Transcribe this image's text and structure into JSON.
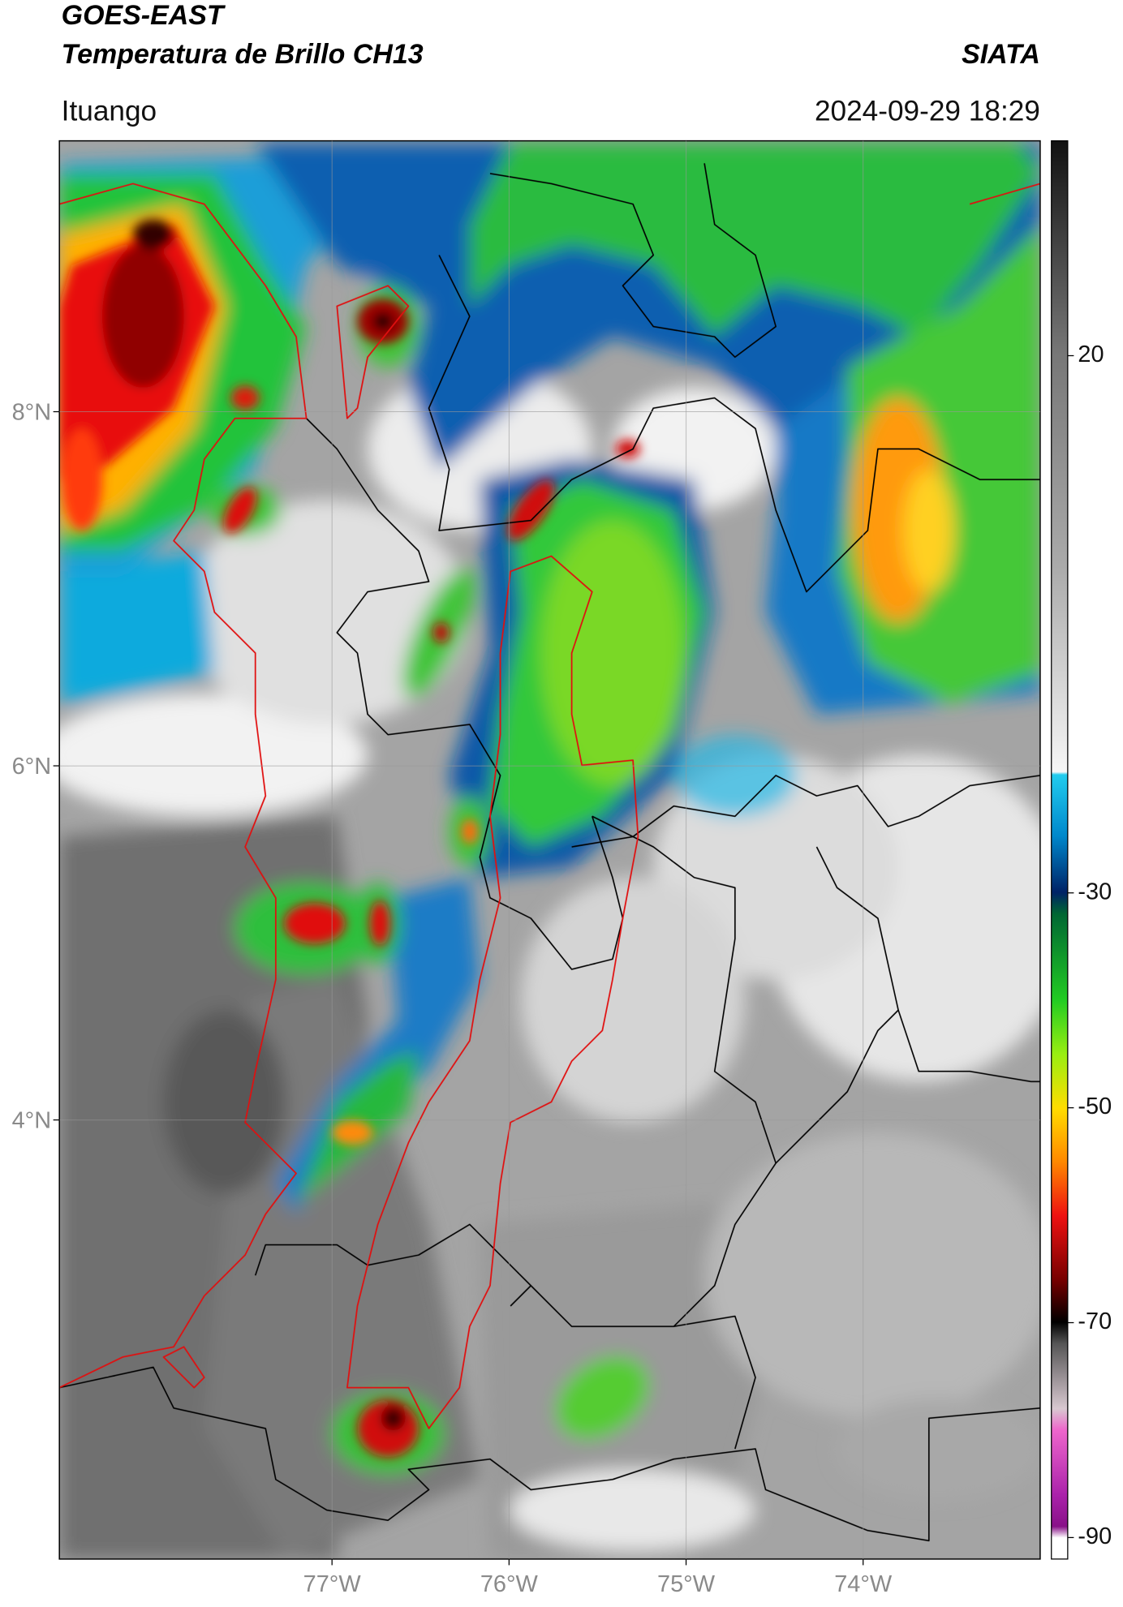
{
  "header": {
    "satellite": "GOES-EAST",
    "product": "Temperatura de Brillo CH13",
    "institution": "SIATA",
    "location": "Ituango",
    "timestamp": "2024-09-29 18:29"
  },
  "map": {
    "xlim": [
      -78.54,
      -73.0
    ],
    "ylim": [
      1.52,
      9.53
    ],
    "grid": true,
    "xticks": [
      {
        "value": -77,
        "label": "77°W"
      },
      {
        "value": -76,
        "label": "76°W"
      },
      {
        "value": -75,
        "label": "75°W"
      },
      {
        "value": -74,
        "label": "74°W"
      }
    ],
    "yticks": [
      {
        "value": 4,
        "label": "4°N"
      },
      {
        "value": 6,
        "label": "6°N"
      },
      {
        "value": 8,
        "label": "8°N"
      }
    ]
  },
  "colorbar": {
    "lim": [
      -92,
      40
    ],
    "ticks": [
      -90,
      -70,
      -50,
      -30,
      20
    ]
  }
}
